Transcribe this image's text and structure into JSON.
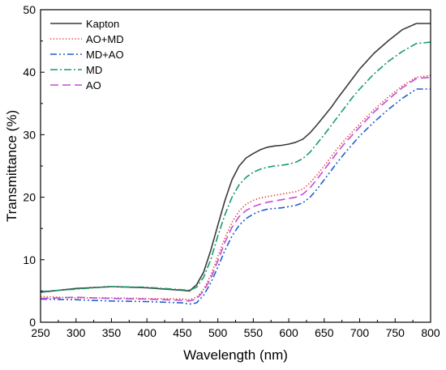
{
  "chart_data": {
    "type": "line",
    "title": "",
    "xlabel": "Wavelength (nm)",
    "ylabel": "Transmittance (%)",
    "xlim": [
      250,
      800
    ],
    "ylim": [
      0,
      50
    ],
    "xticks": [
      250,
      300,
      350,
      400,
      450,
      500,
      550,
      600,
      650,
      700,
      750,
      800
    ],
    "yticks": [
      0,
      10,
      20,
      30,
      40,
      50
    ],
    "grid": false,
    "legend_position": "top-left",
    "x": [
      250,
      300,
      350,
      400,
      450,
      460,
      470,
      480,
      490,
      500,
      510,
      520,
      530,
      540,
      550,
      560,
      570,
      580,
      590,
      600,
      610,
      620,
      630,
      640,
      650,
      660,
      670,
      680,
      690,
      700,
      720,
      740,
      760,
      780,
      800
    ],
    "series": [
      {
        "name": "Kapton",
        "color": "#3a3a3a",
        "dash": "solid",
        "values": [
          4.8,
          5.4,
          5.7,
          5.5,
          5.1,
          5.0,
          6.0,
          8.0,
          11.5,
          15.5,
          19.5,
          22.8,
          25.0,
          26.3,
          27.0,
          27.6,
          28.0,
          28.2,
          28.3,
          28.5,
          28.8,
          29.3,
          30.3,
          31.6,
          33.0,
          34.4,
          36.0,
          37.5,
          39.0,
          40.5,
          43.0,
          45.0,
          46.8,
          47.8,
          47.8
        ]
      },
      {
        "name": "AO+MD",
        "color": "#e8282a",
        "dash": "1.2,2.6",
        "values": [
          4.1,
          3.9,
          3.9,
          3.8,
          3.7,
          3.6,
          4.0,
          5.3,
          7.5,
          10.5,
          13.5,
          16.0,
          17.8,
          18.9,
          19.5,
          19.9,
          20.1,
          20.3,
          20.5,
          20.7,
          20.9,
          21.3,
          22.3,
          23.6,
          25.0,
          26.5,
          28.0,
          29.3,
          30.5,
          31.7,
          34.0,
          36.0,
          37.8,
          39.2,
          39.5
        ]
      },
      {
        "name": "MD+AO",
        "color": "#1f5fcf",
        "dash": "8,3,2,3,2,3",
        "values": [
          3.7,
          3.6,
          3.4,
          3.3,
          3.1,
          2.9,
          3.1,
          4.3,
          6.3,
          8.8,
          11.5,
          13.8,
          15.5,
          16.6,
          17.3,
          17.8,
          18.1,
          18.2,
          18.3,
          18.5,
          18.7,
          19.1,
          20.0,
          21.3,
          22.8,
          24.3,
          25.8,
          27.2,
          28.5,
          29.8,
          32.0,
          34.0,
          35.8,
          37.3,
          37.3
        ]
      },
      {
        "name": "MD",
        "color": "#169c6a",
        "dash": "9,3,2,3",
        "values": [
          4.9,
          5.3,
          5.7,
          5.6,
          5.2,
          5.1,
          5.6,
          7.2,
          10.0,
          13.8,
          17.2,
          20.0,
          22.0,
          23.2,
          24.0,
          24.5,
          24.8,
          25.0,
          25.1,
          25.3,
          25.6,
          26.2,
          27.2,
          28.6,
          30.0,
          31.5,
          33.0,
          34.5,
          36.0,
          37.3,
          39.7,
          41.7,
          43.3,
          44.6,
          44.8
        ]
      },
      {
        "name": "AO",
        "color": "#c24fd8",
        "dash": "10,5",
        "values": [
          3.8,
          4.0,
          3.8,
          3.7,
          3.5,
          3.4,
          3.7,
          5.0,
          7.0,
          9.8,
          12.8,
          15.2,
          16.9,
          17.9,
          18.5,
          18.9,
          19.2,
          19.4,
          19.6,
          19.8,
          20.0,
          20.5,
          21.5,
          22.9,
          24.4,
          25.9,
          27.4,
          28.8,
          30.0,
          31.2,
          33.6,
          35.6,
          37.5,
          39.0,
          39.2
        ]
      }
    ]
  }
}
